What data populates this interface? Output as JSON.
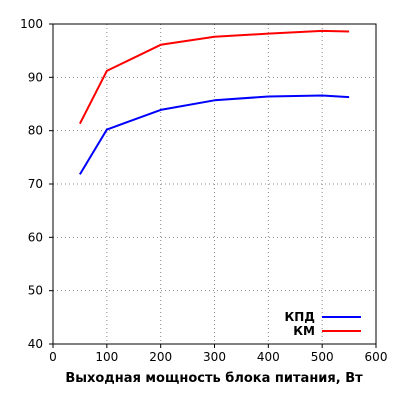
{
  "chart_data": {
    "type": "line",
    "title": "",
    "xlabel": "Выходная мощность блока питания, Вт",
    "ylabel": "",
    "xlim": [
      0,
      600
    ],
    "ylim": [
      40,
      100
    ],
    "xticks": [
      0,
      100,
      200,
      300,
      400,
      500,
      600
    ],
    "yticks": [
      40,
      50,
      60,
      70,
      80,
      90,
      100
    ],
    "grid": true,
    "legend_position": "bottom-right",
    "series": [
      {
        "name": "КПД",
        "color": "#0000ff",
        "x": [
          50,
          100,
          200,
          300,
          400,
          500,
          550
        ],
        "y": [
          71.8,
          80.2,
          83.9,
          85.7,
          86.4,
          86.6,
          86.3
        ]
      },
      {
        "name": "КМ",
        "color": "#ff0000",
        "x": [
          50,
          100,
          200,
          300,
          400,
          500,
          550
        ],
        "y": [
          81.3,
          91.2,
          96.1,
          97.6,
          98.2,
          98.7,
          98.6
        ]
      }
    ]
  }
}
